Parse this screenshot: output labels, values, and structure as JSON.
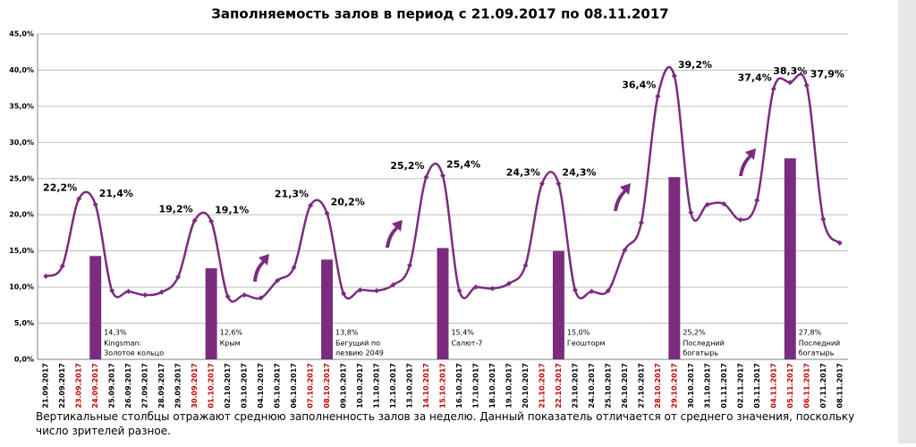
{
  "chart_data": {
    "type": "line-bar",
    "title": "Заполняемость залов в период с 21.09.2017 по 08.11.2017",
    "footnote": "Вертикальные столбцы отражают среднюю заполненность залов за неделю. Данный показатель отличается от среднего значения, поскольку число зрителей разное.",
    "categories": [
      "21.09.2017",
      "22.09.2017",
      "23.09.2017",
      "24.09.2017",
      "25.09.2017",
      "26.09.2017",
      "27.09.2017",
      "28.09.2017",
      "29.09.2017",
      "30.09.2017",
      "01.10.2017",
      "02.10.2017",
      "03.10.2017",
      "04.10.2017",
      "05.10.2017",
      "06.10.2017",
      "07.10.2017",
      "08.10.2017",
      "09.10.2017",
      "10.10.2017",
      "11.10.2017",
      "12.10.2017",
      "13.10.2017",
      "14.10.2017",
      "15.10.2017",
      "16.10.2017",
      "17.10.2017",
      "18.10.2017",
      "19.10.2017",
      "20.10.2017",
      "21.10.2017",
      "22.10.2017",
      "23.10.2017",
      "24.10.2017",
      "25.10.2017",
      "26.10.2017",
      "27.10.2017",
      "28.10.2017",
      "29.10.2017",
      "30.10.2017",
      "31.10.2017",
      "01.11.2017",
      "02.11.2017",
      "03.11.2017",
      "04.11.2017",
      "05.11.2017",
      "06.11.2017",
      "07.11.2017",
      "08.11.2017"
    ],
    "highlight_categories": [
      2,
      3,
      9,
      10,
      16,
      17,
      23,
      24,
      30,
      31,
      37,
      38,
      44,
      45,
      46
    ],
    "highlight_color": "#c00000",
    "series": [
      {
        "type": "line",
        "color": "#7b2c7e",
        "values": [
          11.5,
          12.9,
          22.2,
          21.4,
          9.5,
          9.4,
          8.9,
          9.3,
          11.4,
          19.2,
          19.1,
          8.7,
          8.9,
          8.5,
          10.9,
          12.7,
          21.3,
          20.2,
          9.1,
          9.6,
          9.5,
          10.3,
          13.0,
          25.2,
          25.4,
          9.5,
          10.0,
          9.8,
          10.5,
          13.0,
          24.3,
          24.3,
          9.6,
          9.4,
          9.5,
          15.1,
          18.9,
          36.4,
          39.2,
          20.3,
          21.4,
          21.5,
          19.3,
          22.0,
          37.4,
          38.3,
          37.9,
          19.4,
          16.1
        ],
        "value_labels": [
          null,
          null,
          "22,2%",
          "21,4%",
          null,
          null,
          null,
          null,
          null,
          "19,2%",
          "19,1%",
          null,
          null,
          null,
          null,
          null,
          "21,3%",
          "20,2%",
          null,
          null,
          null,
          null,
          null,
          "25,2%",
          "25,4%",
          null,
          null,
          null,
          null,
          null,
          "24,3%",
          "24,3%",
          null,
          null,
          null,
          null,
          null,
          "36,4%",
          "39,2%",
          null,
          null,
          null,
          null,
          null,
          "37,4%",
          "38,3%",
          "37,9%",
          null,
          null
        ]
      },
      {
        "type": "bar",
        "color": "#7b2c7e",
        "values": [
          null,
          null,
          null,
          14.3,
          null,
          null,
          null,
          null,
          null,
          null,
          12.6,
          null,
          null,
          null,
          null,
          null,
          null,
          13.8,
          null,
          null,
          null,
          null,
          null,
          null,
          15.4,
          null,
          null,
          null,
          null,
          null,
          null,
          15.0,
          null,
          null,
          null,
          null,
          null,
          null,
          25.2,
          null,
          null,
          null,
          null,
          null,
          null,
          27.8,
          null,
          null,
          null
        ],
        "value_labels": [
          null,
          null,
          null,
          "14,3%",
          null,
          null,
          null,
          null,
          null,
          null,
          "12,6%",
          null,
          null,
          null,
          null,
          null,
          null,
          "13,8%",
          null,
          null,
          null,
          null,
          null,
          null,
          "15,4%",
          null,
          null,
          null,
          null,
          null,
          null,
          "15,0%",
          null,
          null,
          null,
          null,
          null,
          null,
          "25,2%",
          null,
          null,
          null,
          null,
          null,
          null,
          "27,8%",
          null,
          null,
          null
        ],
        "notes": [
          null,
          null,
          null,
          [
            "Kingsman:",
            "Золотое кольцо"
          ],
          null,
          null,
          null,
          null,
          null,
          null,
          [
            "Крым"
          ],
          null,
          null,
          null,
          null,
          null,
          null,
          [
            "Бегущий по",
            "лезвию 2049"
          ],
          null,
          null,
          null,
          null,
          null,
          null,
          [
            "Салют-7"
          ],
          null,
          null,
          null,
          null,
          null,
          null,
          [
            "Геошторм"
          ],
          null,
          null,
          null,
          null,
          null,
          null,
          [
            "Последний",
            "богатырь"
          ],
          null,
          null,
          null,
          null,
          null,
          null,
          [
            "Последний",
            "богатырь"
          ],
          null,
          null,
          null
        ]
      }
    ],
    "ylim": [
      0,
      45
    ],
    "yticks": [
      {
        "value": 0,
        "label": "0,0%"
      },
      {
        "value": 5,
        "label": "5,0%"
      },
      {
        "value": 10,
        "label": "10,0%"
      },
      {
        "value": 15,
        "label": "15,0%"
      },
      {
        "value": 20,
        "label": "20,0%"
      },
      {
        "value": 25,
        "label": "25,0%"
      },
      {
        "value": 30,
        "label": "30,0%"
      },
      {
        "value": 35,
        "label": "35,0%"
      },
      {
        "value": 40,
        "label": "40,0%"
      },
      {
        "value": 45,
        "label": "45,0%"
      }
    ],
    "grid": true
  }
}
